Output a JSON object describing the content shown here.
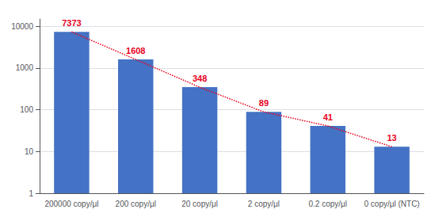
{
  "chart_data": {
    "type": "bar",
    "categories": [
      "200000 copy/μl",
      "200 copy/μl",
      "20 copy/μl",
      "2 copy/μl",
      "0.2 copy/μl",
      "0 copy/μl (NTC)"
    ],
    "series": [
      {
        "type": "bar",
        "color": "#4472C4",
        "values": [
          7373,
          1608,
          348,
          89,
          41,
          13
        ]
      },
      {
        "type": "line",
        "color": "#E8001C",
        "line_style": "dotted",
        "values": [
          7373,
          1608,
          348,
          89,
          41,
          13
        ]
      }
    ],
    "log": "y",
    "ylim": [
      1,
      15000
    ],
    "yticks": [
      1,
      10,
      100,
      1000,
      10000
    ],
    "grid": true,
    "data_labels": true
  }
}
